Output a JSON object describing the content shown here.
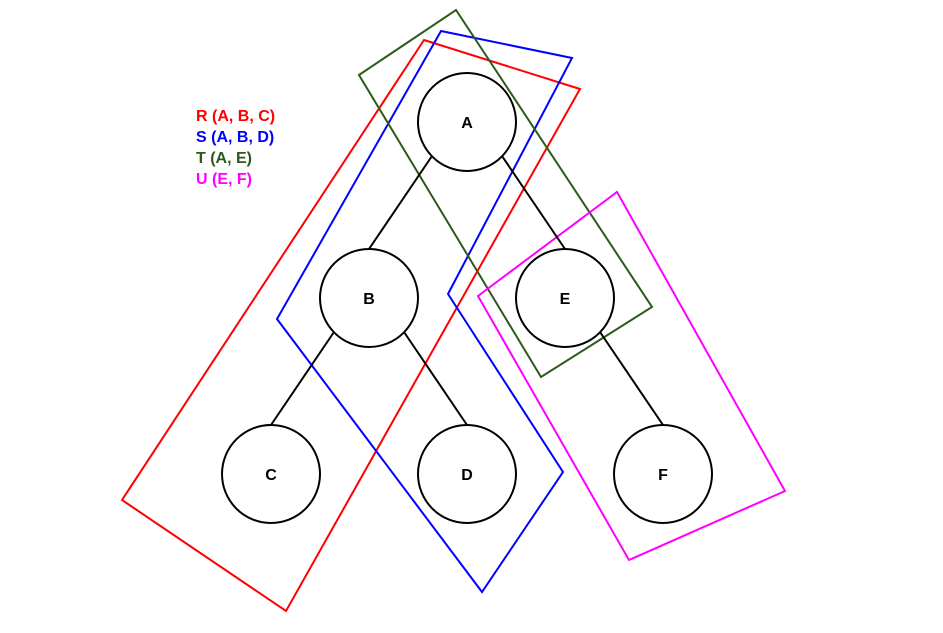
{
  "legend": {
    "items": [
      {
        "label": "R (A, B, C)",
        "color": "#ff0000"
      },
      {
        "label": "S (A, B, D)",
        "color": "#0000ff"
      },
      {
        "label": "T (A, E)",
        "color": "#2d5a1b"
      },
      {
        "label": "U (E, F)",
        "color": "#ff00ff"
      }
    ]
  },
  "nodes": {
    "a": "A",
    "b": "B",
    "c": "C",
    "d": "D",
    "e": "E",
    "f": "F"
  },
  "colors": {
    "edge": "#000000",
    "node_stroke": "#000000",
    "node_fill": "#ffffff"
  }
}
